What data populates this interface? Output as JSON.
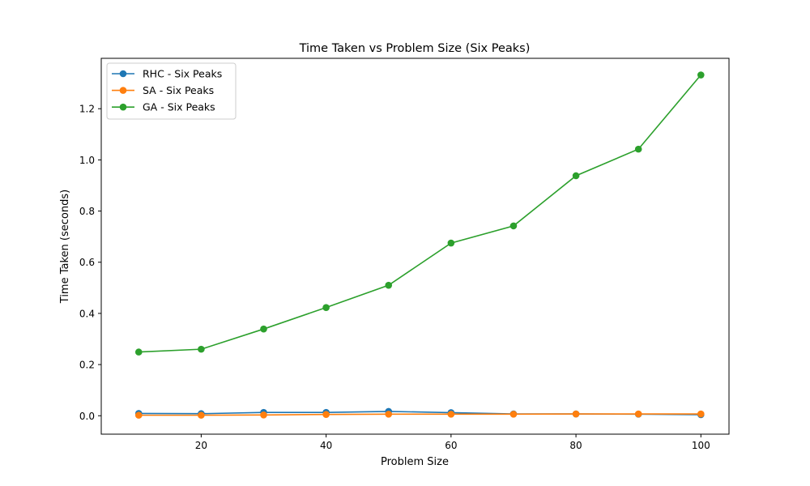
{
  "chart_data": {
    "type": "line",
    "title": "Time Taken vs Problem Size (Six Peaks)",
    "xlabel": "Problem Size",
    "ylabel": "Time Taken (seconds)",
    "xlim": [
      4,
      104.5
    ],
    "ylim": [
      -0.072,
      1.397
    ],
    "xticks": [
      20,
      40,
      60,
      80,
      100
    ],
    "yticks": [
      0.0,
      0.2,
      0.4,
      0.6,
      0.8,
      1.0,
      1.2
    ],
    "ytick_labels": [
      "0.0",
      "0.2",
      "0.4",
      "0.6",
      "0.8",
      "1.0",
      "1.2"
    ],
    "grid": false,
    "legend_position": "top-left",
    "x": [
      10,
      20,
      30,
      40,
      50,
      60,
      70,
      80,
      90,
      100
    ],
    "series": [
      {
        "name": "RHC - Six Peaks",
        "color": "#1f77b4",
        "values": [
          0.009,
          0.008,
          0.013,
          0.013,
          0.017,
          0.012,
          0.007,
          0.007,
          0.006,
          0.004
        ]
      },
      {
        "name": "SA - Six Peaks",
        "color": "#ff7f0e",
        "values": [
          0.002,
          0.002,
          0.003,
          0.005,
          0.006,
          0.006,
          0.006,
          0.007,
          0.007,
          0.007
        ]
      },
      {
        "name": "GA - Six Peaks",
        "color": "#2ca02c",
        "values": [
          0.249,
          0.26,
          0.339,
          0.423,
          0.51,
          0.675,
          0.742,
          0.938,
          1.042,
          1.332
        ]
      }
    ]
  }
}
